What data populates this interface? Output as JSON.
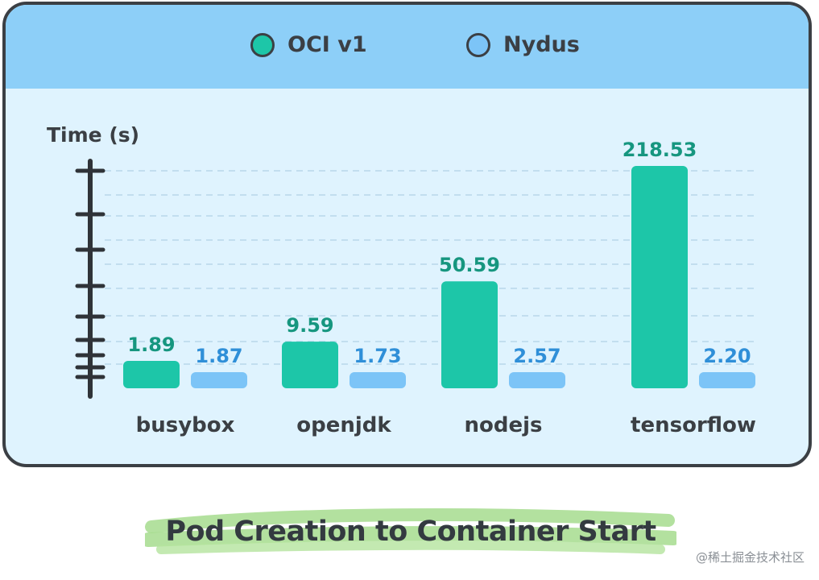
{
  "legend": {
    "items": [
      {
        "label": "OCI v1",
        "color": "#1dc6a8"
      },
      {
        "label": "Nydus",
        "color": "#7cc4f7"
      }
    ]
  },
  "watermark": "@稀土掘金技术社区",
  "chart_data": {
    "type": "bar",
    "title": "Pod Creation to Container Start",
    "ylabel": "Time (s)",
    "xlabel": "",
    "categories": [
      "busybox",
      "openjdk",
      "nodejs",
      "tensorflow"
    ],
    "series": [
      {
        "name": "OCI v1",
        "values": [
          1.89,
          9.59,
          50.59,
          218.53
        ],
        "labels": [
          "1.89",
          "9.59",
          "50.59",
          "218.53"
        ],
        "color": "#1dc6a8",
        "label_color": "#16967f"
      },
      {
        "name": "Nydus",
        "values": [
          1.87,
          1.73,
          2.57,
          2.2
        ],
        "labels": [
          "1.87",
          "1.73",
          "2.57",
          "2.20"
        ],
        "color": "#7cc4f7",
        "label_color": "#2f8fd8"
      }
    ],
    "grid": true,
    "legend_position": "top-center"
  }
}
